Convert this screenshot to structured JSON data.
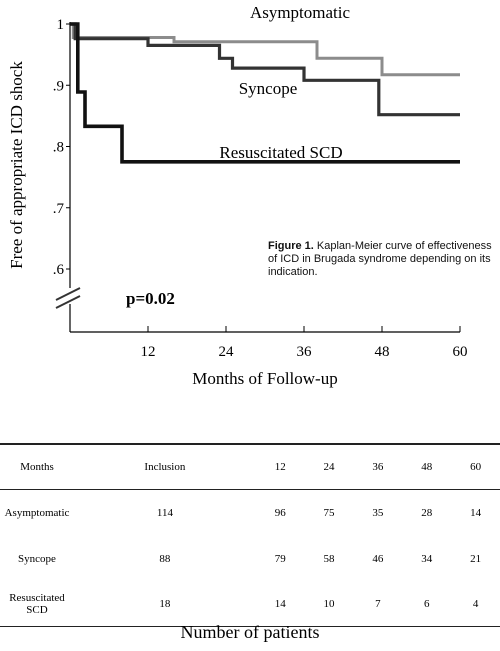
{
  "chart_data": {
    "type": "line",
    "xlabel": "Months of Follow-up",
    "ylabel": "Free of appropriate ICD shock",
    "xlim": [
      0,
      60
    ],
    "ylim": [
      0.55,
      1.0
    ],
    "x_ticks": [
      12,
      24,
      36,
      48,
      60
    ],
    "y_ticks": [
      1.0,
      0.9,
      0.8,
      0.7,
      0.6
    ],
    "x_tick_labels": [
      "12",
      "24",
      "36",
      "48",
      "60"
    ],
    "y_tick_labels": [
      "1",
      ".9",
      ".8",
      ".7",
      ".6"
    ],
    "axis_break": true,
    "grid": false,
    "annotation": "p=0.02",
    "series": [
      {
        "name": "Asymptomatic",
        "color": "#8c8c8c",
        "points": [
          [
            0,
            1.0
          ],
          [
            0.5,
            1.0
          ],
          [
            0.5,
            0.978
          ],
          [
            16,
            0.978
          ],
          [
            16,
            0.971
          ],
          [
            38,
            0.971
          ],
          [
            38,
            0.944
          ],
          [
            48,
            0.944
          ],
          [
            48,
            0.917
          ],
          [
            60,
            0.917
          ]
        ]
      },
      {
        "name": "Syncope",
        "color": "#333333",
        "points": [
          [
            0,
            1.0
          ],
          [
            0.8,
            1.0
          ],
          [
            0.8,
            0.976
          ],
          [
            12,
            0.976
          ],
          [
            12,
            0.965
          ],
          [
            23,
            0.965
          ],
          [
            23,
            0.944
          ],
          [
            25,
            0.944
          ],
          [
            25,
            0.928
          ],
          [
            36,
            0.928
          ],
          [
            36,
            0.908
          ],
          [
            47.5,
            0.908
          ],
          [
            47.5,
            0.852
          ],
          [
            60,
            0.852
          ]
        ]
      },
      {
        "name": "Resuscitated SCD",
        "color": "#111111",
        "points": [
          [
            0,
            1.0
          ],
          [
            1.2,
            1.0
          ],
          [
            1.2,
            0.889
          ],
          [
            2.3,
            0.889
          ],
          [
            2.3,
            0.833
          ],
          [
            8,
            0.833
          ],
          [
            8,
            0.775
          ],
          [
            60,
            0.775
          ]
        ]
      }
    ],
    "series_label_positions": [
      "top",
      "middle",
      "bottom"
    ]
  },
  "caption": {
    "lead": "Figure 1.",
    "text": " Kaplan-Meier curve of effectiveness of ICD in Brugada syndrome depending on its indication."
  },
  "table": {
    "headers": [
      "Months",
      "Inclusion",
      "12",
      "24",
      "36",
      "48",
      "60"
    ],
    "rows": [
      [
        "Asymptomatic",
        "114",
        "96",
        "75",
        "35",
        "28",
        "14"
      ],
      [
        "Syncope",
        "88",
        "79",
        "58",
        "46",
        "34",
        "21"
      ],
      [
        "Resuscitated SCD",
        "18",
        "14",
        "10",
        "7",
        "6",
        "4"
      ]
    ],
    "title": "Number of patients"
  }
}
